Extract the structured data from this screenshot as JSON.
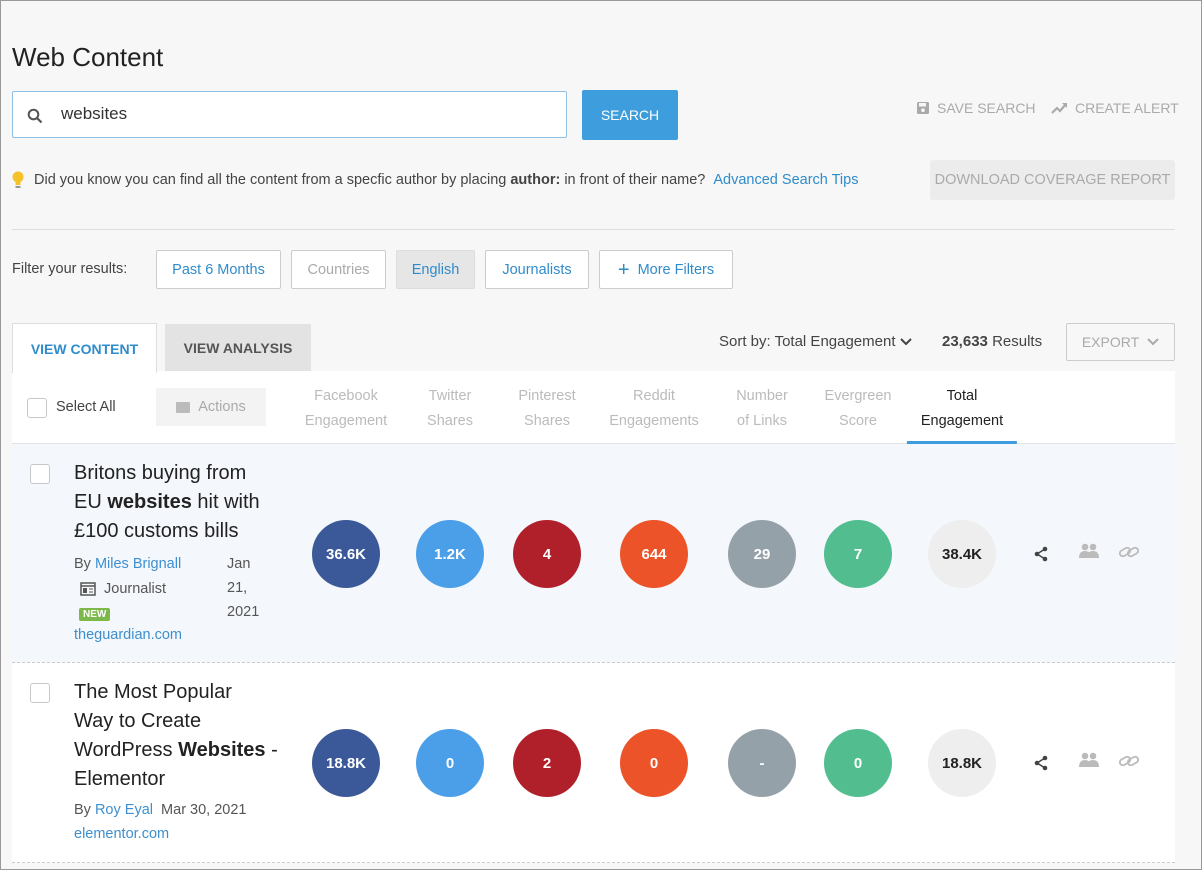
{
  "title": "Web Content",
  "search": {
    "value": "websites",
    "button": "SEARCH"
  },
  "save_search": "SAVE SEARCH",
  "create_alert": "CREATE ALERT",
  "tip": {
    "pre": "Did you know you can find all the content from a specfic author by placing ",
    "bold": "author:",
    "post": " in front of their name?",
    "link": "Advanced Search Tips"
  },
  "download": "DOWNLOAD COVERAGE REPORT",
  "filter_label": "Filter your results:",
  "filters": [
    "Past 6 Months",
    "Countries",
    "English",
    "Journalists",
    "More Filters"
  ],
  "tabs": [
    "VIEW CONTENT",
    "VIEW ANALYSIS"
  ],
  "sort": "Sort by: Total Engagement",
  "results_count": "23,633",
  "results_label": "Results",
  "export": "EXPORT",
  "select_all": "Select All",
  "actions": "Actions",
  "columns": [
    [
      "Facebook",
      "Engagement"
    ],
    [
      "Twitter",
      "Shares"
    ],
    [
      "Pinterest",
      "Shares"
    ],
    [
      "Reddit",
      "Engagements"
    ],
    [
      "Number",
      "of Links"
    ],
    [
      "Evergreen",
      "Score"
    ],
    [
      "Total",
      "Engagement"
    ]
  ],
  "colors": {
    "facebook": "#3b5998",
    "twitter": "#4a9fe8",
    "pinterest": "#b0202a",
    "reddit": "#ec5328",
    "links": "#95a1a8",
    "evergreen": "#52bd8f",
    "total": "#eeeeee"
  },
  "rows": [
    {
      "title_lines": [
        [
          "Britons buying from",
          ""
        ],
        [
          "EU ",
          "websites",
          " hit with"
        ],
        [
          "£100 customs bills"
        ]
      ],
      "by": "By",
      "author": "Miles Brignall",
      "role": "Journalist",
      "badge": "NEW",
      "date": [
        "Jan",
        "21,",
        "2021"
      ],
      "domain": "theguardian.com",
      "values": [
        "36.6K",
        "1.2K",
        "4",
        "644",
        "29",
        "7",
        "38.4K"
      ]
    },
    {
      "title_lines": [
        [
          "The Most Popular"
        ],
        [
          "Way to Create"
        ],
        [
          "WordPress ",
          "Websites",
          " -"
        ],
        [
          "Elementor"
        ]
      ],
      "by": "By",
      "author": "Roy Eyal",
      "date": [
        "Mar 30, 2021"
      ],
      "domain": "elementor.com",
      "values": [
        "18.8K",
        "0",
        "2",
        "0",
        "-",
        "0",
        "18.8K"
      ]
    }
  ]
}
